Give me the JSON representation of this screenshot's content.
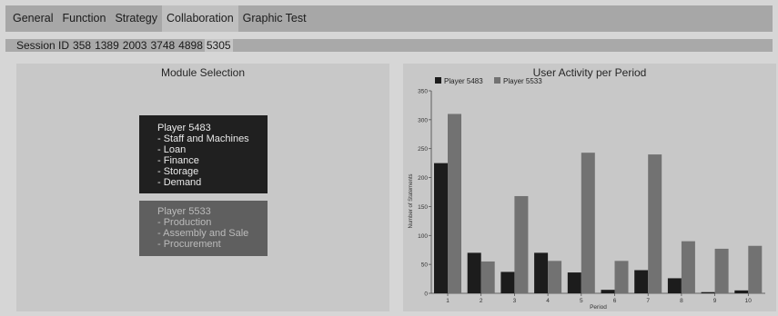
{
  "nav": {
    "tabs": [
      {
        "label": "General",
        "active": false
      },
      {
        "label": "Function",
        "active": false
      },
      {
        "label": "Strategy",
        "active": false
      },
      {
        "label": "Collaboration",
        "active": true
      },
      {
        "label": "Graphic Test",
        "active": false
      }
    ]
  },
  "session": {
    "label": "Session ID",
    "ids": [
      "358",
      "1389",
      "2003",
      "3748",
      "4898",
      "5305"
    ],
    "active_id": "5305"
  },
  "module_panel": {
    "title": "Module Selection",
    "players": [
      {
        "name": "Player 5483",
        "modules": [
          "- Staff and Machines",
          "- Loan",
          "- Finance",
          "- Storage",
          "- Demand"
        ]
      },
      {
        "name": "Player 5533",
        "modules": [
          "- Production",
          "- Assembly and Sale",
          "- Procurement"
        ]
      }
    ]
  },
  "chart_panel": {
    "title": "User Activity per Period"
  },
  "colors": {
    "player_5483": "#1c1c1c",
    "player_5533": "#727272"
  },
  "chart_data": {
    "type": "bar",
    "title": "User Activity per Period",
    "xlabel": "Period",
    "ylabel": "Number of Statements",
    "categories": [
      "1",
      "2",
      "3",
      "4",
      "5",
      "6",
      "7",
      "8",
      "9",
      "10"
    ],
    "ylim": [
      0,
      350
    ],
    "yticks": [
      "0",
      "50",
      "100",
      "150",
      "200",
      "250",
      "300",
      "350"
    ],
    "legend_position": "top-left",
    "series": [
      {
        "name": "Player 5483",
        "color": "#1c1c1c",
        "values": [
          225,
          70,
          37,
          70,
          36,
          6,
          40,
          26,
          2,
          5
        ]
      },
      {
        "name": "Player 5533",
        "color": "#727272",
        "values": [
          310,
          55,
          168,
          56,
          243,
          56,
          240,
          90,
          77,
          82
        ]
      }
    ]
  }
}
